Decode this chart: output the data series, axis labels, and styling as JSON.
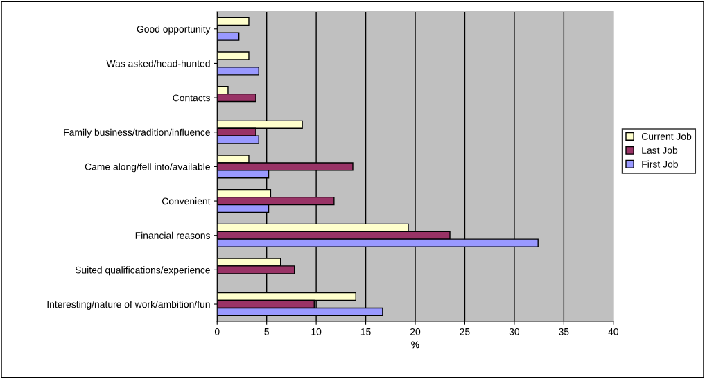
{
  "chart_data": {
    "type": "bar",
    "orientation": "horizontal",
    "xlabel": "%",
    "categories": [
      "Good opportunity",
      "Was asked/head-hunted",
      "Contacts",
      "Family business/tradition/influence",
      "Came along/fell into/available",
      "Convenient",
      "Financial reasons",
      "Suited qualifications/experience",
      "Interesting/nature of work/ambition/fun"
    ],
    "series": [
      {
        "name": "Current Job",
        "color": "#ffffcc",
        "values": [
          3.2,
          3.2,
          1.1,
          8.6,
          3.2,
          5.4,
          19.3,
          6.4,
          14.0
        ]
      },
      {
        "name": "Last Job",
        "color": "#993366",
        "values": [
          null,
          null,
          3.9,
          3.9,
          13.7,
          11.8,
          23.5,
          7.8,
          9.8
        ]
      },
      {
        "name": "First Job",
        "color": "#9999ff",
        "values": [
          2.2,
          4.2,
          null,
          4.2,
          5.2,
          5.2,
          32.4,
          null,
          16.7
        ]
      }
    ],
    "xlim": [
      0,
      40
    ],
    "xticks": [
      0,
      5,
      10,
      15,
      20,
      25,
      30,
      35,
      40
    ],
    "grid": "x",
    "legend": "right"
  }
}
